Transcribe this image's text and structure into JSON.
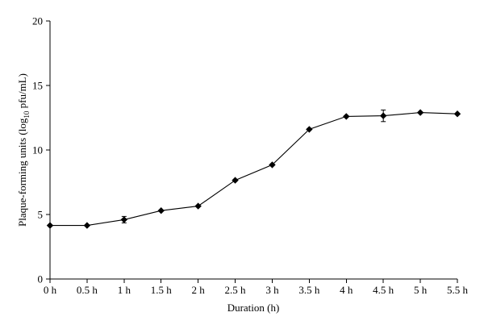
{
  "chart_data": {
    "type": "line",
    "title": "",
    "xlabel": "Duration (h)",
    "ylabel_parts": {
      "before": "Plaque-forming units (log",
      "subscript": "10",
      "after": " pfu/mL)"
    },
    "categories": [
      "0 h",
      "0.5 h",
      "1 h",
      "1.5 h",
      "2 h",
      "2.5 h",
      "3 h",
      "3.5 h",
      "4 h",
      "4.5 h",
      "5 h",
      "5.5 h"
    ],
    "series": [
      {
        "values": [
          4.15,
          4.15,
          4.6,
          5.3,
          5.65,
          7.65,
          8.85,
          11.6,
          12.6,
          12.65,
          12.9,
          12.8
        ],
        "errors": [
          0,
          0,
          0.25,
          0,
          0,
          0,
          0,
          0,
          0,
          0.45,
          0,
          0
        ],
        "marker": "diamond",
        "color": "#000000"
      }
    ],
    "ylim": [
      0,
      20
    ],
    "yticks": [
      0,
      5,
      10,
      15,
      20
    ],
    "grid": false,
    "legend": "none"
  }
}
